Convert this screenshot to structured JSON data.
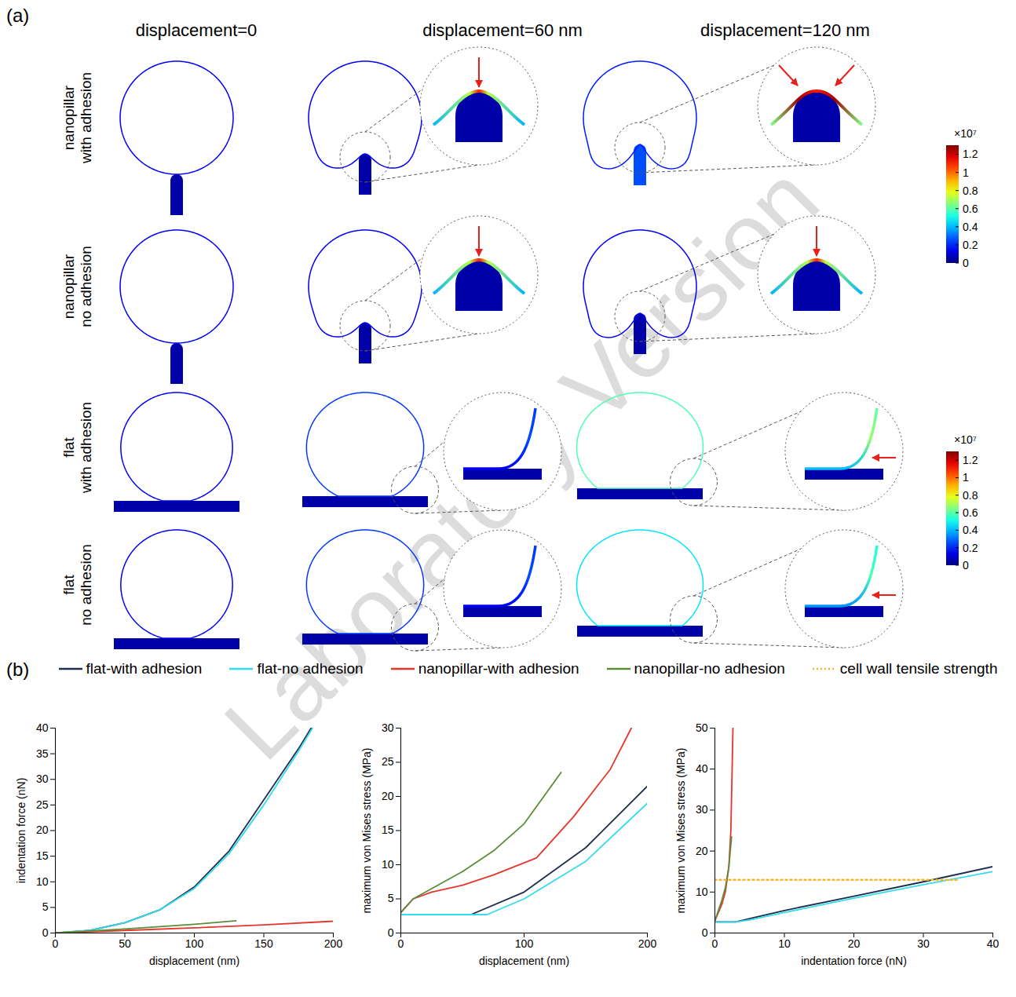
{
  "watermark": "Laboratory Version",
  "panel_a": {
    "label": "(a)",
    "column_titles": [
      "displacement=0",
      "displacement=60 nm",
      "displacement=120 nm"
    ],
    "row_titles": [
      "nanopillar with adhesion",
      "nanopillar no adhesion",
      "flat with adhesion",
      "flat no adhesion"
    ],
    "colorbar": {
      "multiplier_label": "×10⁷",
      "range": [
        0,
        1.3
      ],
      "ticks": [
        0,
        0.2,
        0.4,
        0.6,
        0.8,
        1,
        1.2
      ]
    }
  },
  "panel_b": {
    "label": "(b)"
  },
  "chart_data": [
    {
      "type": "line",
      "x_label": "displacement (nm)",
      "y_label": "indentation force (nN)",
      "xlim": [
        0,
        200
      ],
      "xticks": [
        0,
        50,
        100,
        150,
        200
      ],
      "ylim": [
        0,
        40
      ],
      "yticks": [
        0,
        5,
        10,
        15,
        20,
        25,
        30,
        35,
        40
      ],
      "legend": "top",
      "series": [
        {
          "name": "flat-with adhesion",
          "color": "#1f2d4d",
          "line_style": "solid",
          "x": [
            0,
            25,
            50,
            75,
            100,
            125,
            150,
            175,
            184
          ],
          "values": [
            0,
            0.5,
            2,
            4.5,
            9,
            16,
            26,
            36,
            40
          ]
        },
        {
          "name": "flat-no adhesion",
          "color": "#33dcec",
          "line_style": "solid",
          "x": [
            0,
            25,
            50,
            75,
            100,
            125,
            150,
            175,
            185
          ],
          "values": [
            0,
            0.5,
            2,
            4.5,
            8.7,
            15.5,
            25,
            35.5,
            40
          ]
        },
        {
          "name": "nanopillar-with adhesion",
          "color": "#e8352b",
          "line_style": "solid",
          "x": [
            0,
            50,
            100,
            150,
            200
          ],
          "values": [
            0,
            0.5,
            1,
            1.6,
            2.3
          ]
        },
        {
          "name": "nanopillar-no adhesion",
          "color": "#5b8c3a",
          "line_style": "solid",
          "x": [
            0,
            50,
            100,
            130
          ],
          "values": [
            0,
            0.8,
            1.7,
            2.4
          ]
        }
      ]
    },
    {
      "type": "line",
      "x_label": "displacement (nm)",
      "y_label": "maximum von Mises stress (MPa)",
      "xlim": [
        0,
        200
      ],
      "xticks": [
        0,
        100,
        200
      ],
      "ylim": [
        0,
        30
      ],
      "yticks": [
        0,
        5,
        10,
        15,
        20,
        25,
        30
      ],
      "legend": "top",
      "series": [
        {
          "name": "flat-with adhesion",
          "color": "#1f2d4d",
          "line_style": "solid",
          "x": [
            0,
            57,
            100,
            150,
            200
          ],
          "values": [
            2.7,
            2.7,
            6,
            12.5,
            21.5
          ]
        },
        {
          "name": "flat-no adhesion",
          "color": "#33dcec",
          "line_style": "solid",
          "x": [
            0,
            70,
            100,
            150,
            200
          ],
          "values": [
            2.7,
            2.7,
            5,
            10.5,
            19
          ]
        },
        {
          "name": "nanopillar-with adhesion",
          "color": "#e8352b",
          "line_style": "solid",
          "x": [
            0,
            10,
            25,
            50,
            75,
            110,
            140,
            170,
            187
          ],
          "values": [
            3,
            5,
            6,
            7,
            8.5,
            11,
            17,
            24,
            30
          ]
        },
        {
          "name": "nanopillar-no adhesion",
          "color": "#5b8c3a",
          "line_style": "solid",
          "x": [
            0,
            5,
            10,
            25,
            50,
            75,
            100,
            130
          ],
          "values": [
            3,
            4,
            5,
            6.5,
            9,
            12,
            16,
            23.5
          ]
        }
      ]
    },
    {
      "type": "line",
      "x_label": "indentation force (nN)",
      "y_label": "maximum von Mises stress (MPa)",
      "xlim": [
        0,
        40
      ],
      "xticks": [
        0,
        10,
        20,
        30,
        40
      ],
      "ylim": [
        0,
        50
      ],
      "yticks": [
        0,
        10,
        20,
        30,
        40,
        50
      ],
      "legend": "top",
      "series": [
        {
          "name": "flat-with adhesion",
          "color": "#1f2d4d",
          "line_style": "solid",
          "x": [
            0,
            3,
            5,
            10,
            20,
            30,
            40
          ],
          "values": [
            2.7,
            2.7,
            3.5,
            5.5,
            9,
            12.5,
            16.2
          ]
        },
        {
          "name": "flat-no adhesion",
          "color": "#33dcec",
          "line_style": "solid",
          "x": [
            0,
            3,
            5,
            10,
            20,
            30,
            40
          ],
          "values": [
            2.7,
            2.7,
            3.2,
            5,
            8.5,
            11.8,
            15
          ]
        },
        {
          "name": "nanopillar-with adhesion",
          "color": "#e8352b",
          "line_style": "solid",
          "x": [
            0,
            0.5,
            1,
            1.5,
            2,
            2.3,
            2.6
          ],
          "values": [
            3,
            5,
            7,
            10,
            16,
            25,
            50
          ]
        },
        {
          "name": "nanopillar-no adhesion",
          "color": "#5b8c3a",
          "line_style": "solid",
          "x": [
            0,
            0.5,
            1,
            1.5,
            2,
            2.4
          ],
          "values": [
            3,
            5.5,
            8,
            11,
            16,
            23.5
          ]
        },
        {
          "name": "cell wall tensile strength",
          "color": "#f5b62a",
          "line_style": "dotted",
          "x": [
            0,
            35
          ],
          "values": [
            13,
            13
          ]
        }
      ]
    }
  ]
}
